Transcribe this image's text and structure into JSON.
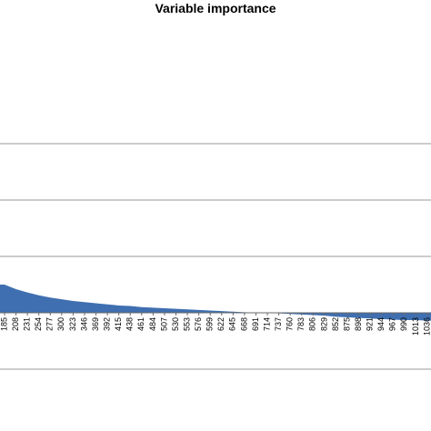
{
  "chart_data": {
    "type": "area",
    "title": "Variable importance",
    "xlabel": "",
    "ylabel": "",
    "x": [
      185,
      208,
      231,
      254,
      277,
      300,
      323,
      346,
      369,
      392,
      415,
      438,
      461,
      484,
      507,
      530,
      553,
      576,
      599,
      622,
      645,
      668,
      691,
      714,
      737,
      760,
      783,
      806,
      829,
      852,
      875,
      898,
      921,
      944,
      967,
      990,
      1013,
      1036
    ],
    "y": [
      0.5,
      0.42,
      0.36,
      0.31,
      0.27,
      0.24,
      0.21,
      0.19,
      0.17,
      0.15,
      0.13,
      0.12,
      0.1,
      0.09,
      0.08,
      0.07,
      0.06,
      0.05,
      0.04,
      0.03,
      0.02,
      0.01,
      0.005,
      0.0,
      -0.01,
      -0.02,
      -0.03,
      -0.04,
      -0.05,
      -0.07,
      -0.08,
      -0.09,
      -0.1,
      -0.11,
      -0.12,
      -0.13,
      -0.13,
      -0.14
    ],
    "tick_labels": [
      "185",
      "208",
      "231",
      "254",
      "277",
      "300",
      "323",
      "346",
      "369",
      "392",
      "415",
      "438",
      "461",
      "484",
      "507",
      "530",
      "553",
      "576",
      "599",
      "622",
      "645",
      "668",
      "691",
      "714",
      "737",
      "760",
      "783",
      "806",
      "829",
      "852",
      "875",
      "898",
      "921",
      "944",
      "967",
      "990",
      "1013",
      "1036"
    ],
    "ylim": [
      -1.5,
      3.5
    ],
    "grid": true,
    "legend": "none",
    "fill_color": "#3f6fb0"
  }
}
